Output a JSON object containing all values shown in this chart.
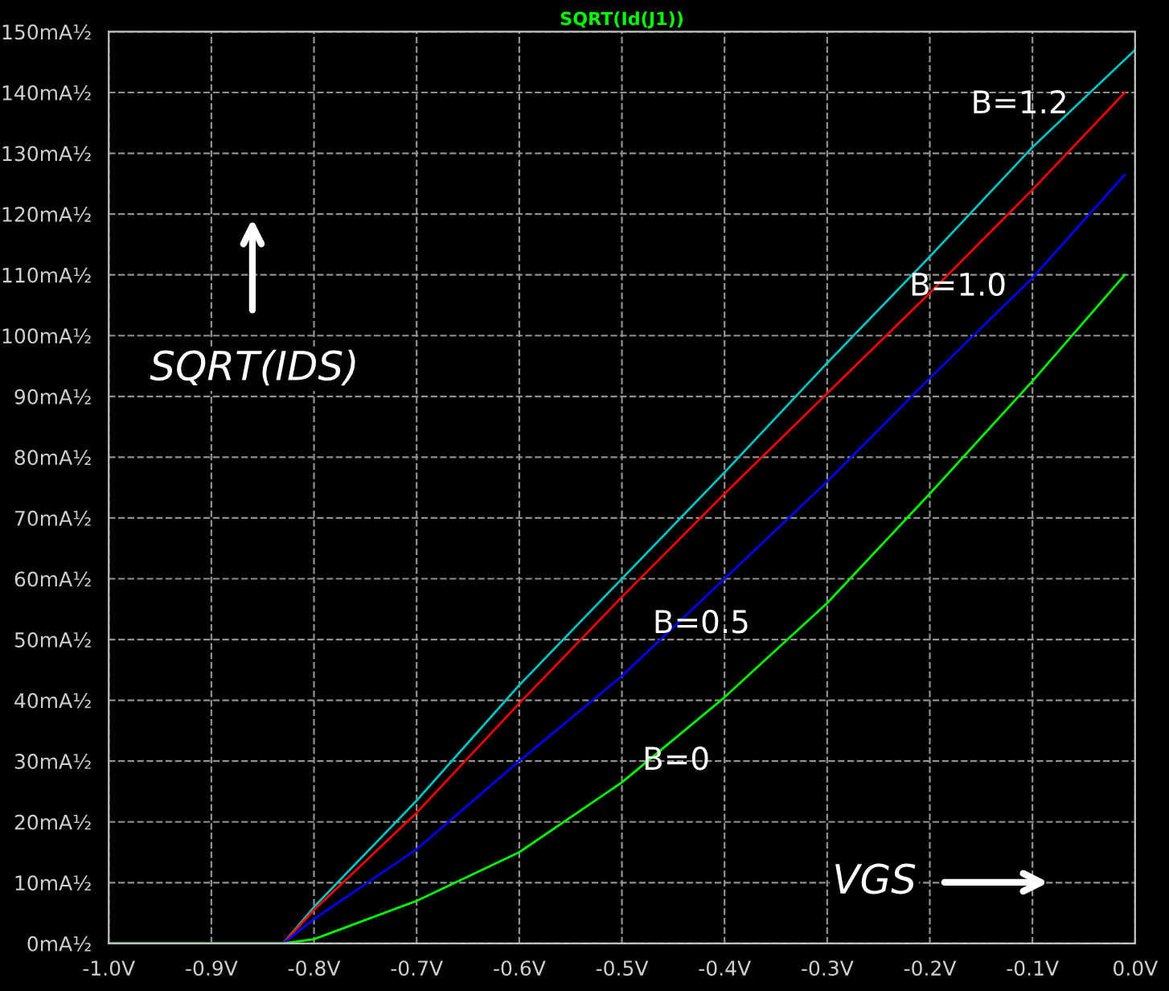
{
  "chart_data": {
    "type": "line",
    "title": "SQRT(Id(J1))",
    "series": [
      {
        "color": "#00c0c0",
        "x": [
          -1.0,
          -0.83,
          -0.8,
          -0.7,
          -0.6,
          -0.5,
          -0.4,
          -0.3,
          -0.2,
          -0.1,
          0.0
        ],
        "values": [
          0,
          0,
          6,
          23.5,
          42.5,
          60,
          77.5,
          95.5,
          113,
          131,
          147
        ]
      },
      {
        "color": "#ff0000",
        "x": [
          -1.0,
          -0.83,
          -0.8,
          -0.7,
          -0.6,
          -0.5,
          -0.4,
          -0.3,
          -0.2,
          -0.1,
          -0.01
        ],
        "values": [
          0,
          0,
          5.5,
          21.5,
          39.5,
          57,
          74,
          90.5,
          107,
          124,
          140
        ]
      },
      {
        "color": "#0000ff",
        "x": [
          -1.0,
          -0.83,
          -0.8,
          -0.7,
          -0.6,
          -0.5,
          -0.4,
          -0.3,
          -0.2,
          -0.1,
          -0.01
        ],
        "values": [
          0,
          0,
          4,
          15.5,
          30,
          44,
          60,
          76,
          93,
          109.5,
          126.5
        ]
      },
      {
        "color": "#00ff00",
        "x": [
          -1.0,
          -0.83,
          -0.8,
          -0.7,
          -0.6,
          -0.5,
          -0.4,
          -0.3,
          -0.2,
          -0.1,
          -0.01
        ],
        "values": [
          0,
          0,
          0.7,
          7,
          15,
          26.5,
          40.5,
          56,
          74,
          92.5,
          110
        ]
      }
    ],
    "annotations": [
      "B=1.2",
      "B=1.0",
      "B=0.5",
      "B=0",
      "SQRT(IDS)",
      "VGS"
    ],
    "xlim": [
      -1.0,
      0.0
    ],
    "xticks": [
      {
        "value": -1.0,
        "label": "-1.0V"
      },
      {
        "value": -0.9,
        "label": "-0.9V"
      },
      {
        "value": -0.8,
        "label": "-0.8V"
      },
      {
        "value": -0.7,
        "label": "-0.7V"
      },
      {
        "value": -0.6,
        "label": "-0.6V"
      },
      {
        "value": -0.5,
        "label": "-0.5V"
      },
      {
        "value": -0.4,
        "label": "-0.4V"
      },
      {
        "value": -0.3,
        "label": "-0.3V"
      },
      {
        "value": -0.2,
        "label": "-0.2V"
      },
      {
        "value": -0.1,
        "label": "-0.1V"
      },
      {
        "value": 0.0,
        "label": "0.0V"
      }
    ],
    "ylim": [
      0,
      150
    ],
    "yticks": [
      {
        "value": 0,
        "label": "0mA½"
      },
      {
        "value": 10,
        "label": "10mA½"
      },
      {
        "value": 20,
        "label": "20mA½"
      },
      {
        "value": 30,
        "label": "30mA½"
      },
      {
        "value": 40,
        "label": "40mA½"
      },
      {
        "value": 50,
        "label": "50mA½"
      },
      {
        "value": 60,
        "label": "60mA½"
      },
      {
        "value": 70,
        "label": "70mA½"
      },
      {
        "value": 80,
        "label": "80mA½"
      },
      {
        "value": 90,
        "label": "90mA½"
      },
      {
        "value": 100,
        "label": "100mA½"
      },
      {
        "value": 110,
        "label": "110mA½"
      },
      {
        "value": 120,
        "label": "120mA½"
      },
      {
        "value": 130,
        "label": "130mA½"
      },
      {
        "value": 140,
        "label": "140mA½"
      },
      {
        "value": 150,
        "label": "150mA½"
      }
    ],
    "grid": true,
    "line_style": "solid"
  }
}
